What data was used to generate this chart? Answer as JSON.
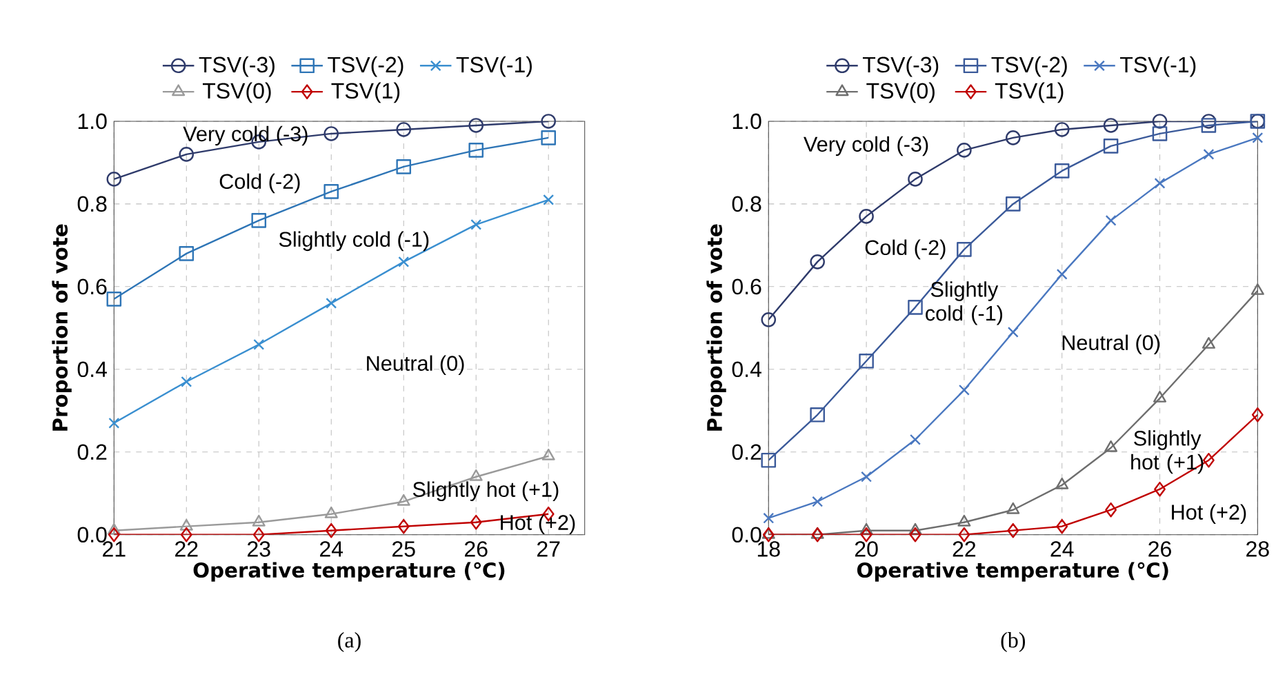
{
  "chart_data": [
    {
      "type": "line",
      "xlabel": "Operative temperature (℃)",
      "ylabel": "Proportion of vote",
      "x": [
        21,
        22,
        23,
        24,
        25,
        26,
        27
      ],
      "xlim": [
        21,
        27.5
      ],
      "xticks": [
        21,
        22,
        23,
        24,
        25,
        26,
        27
      ],
      "ylim": [
        0,
        1
      ],
      "yticks": [
        {
          "value": 0,
          "label": "0.0"
        },
        {
          "value": 0.2,
          "label": "0.2"
        },
        {
          "value": 0.4,
          "label": "0.4"
        },
        {
          "value": 0.6,
          "label": "0.6"
        },
        {
          "value": 0.8,
          "label": "0.8"
        },
        {
          "value": 1,
          "label": "1.0"
        }
      ],
      "grid": true,
      "legend": "top",
      "series": [
        {
          "name": "TSV(-3)",
          "color": "#2f3b6b",
          "marker": "circle",
          "values": [
            0.86,
            0.92,
            0.95,
            0.97,
            0.98,
            0.99,
            1.0
          ]
        },
        {
          "name": "TSV(-2)",
          "color": "#2e75b6",
          "marker": "square",
          "values": [
            0.57,
            0.68,
            0.76,
            0.83,
            0.89,
            0.93,
            0.96
          ]
        },
        {
          "name": "TSV(-1)",
          "color": "#3a8fd0",
          "marker": "cross",
          "values": [
            0.27,
            0.37,
            0.46,
            0.56,
            0.66,
            0.75,
            0.81
          ]
        },
        {
          "name": "TSV(0)",
          "color": "#9a9a9a",
          "marker": "triangle",
          "values": [
            0.01,
            0.02,
            0.03,
            0.05,
            0.08,
            0.14,
            0.19
          ]
        },
        {
          "name": "TSV(1)",
          "color": "#c00000",
          "marker": "diamond",
          "values": [
            0.0,
            0.0,
            0.0,
            0.01,
            0.02,
            0.03,
            0.05
          ]
        }
      ],
      "annotations": [
        "Very cold (-3)",
        "Cold (-2)",
        "Slightly cold (-1)",
        "Neutral (0)",
        "Slightly hot (+1)",
        "Hot (+2)",
        "(a)"
      ]
    },
    {
      "type": "line",
      "xlabel": "Operative temperature (℃)",
      "ylabel": "Proportion of vote",
      "x": [
        18,
        19,
        20,
        21,
        22,
        23,
        24,
        25,
        26,
        27,
        28
      ],
      "xlim": [
        18,
        28
      ],
      "xticks": [
        18,
        20,
        22,
        24,
        26,
        28
      ],
      "ylim": [
        0,
        1
      ],
      "yticks": [
        {
          "value": 0,
          "label": "0.0"
        },
        {
          "value": 0.2,
          "label": "0.2"
        },
        {
          "value": 0.4,
          "label": "0.4"
        },
        {
          "value": 0.6,
          "label": "0.6"
        },
        {
          "value": 0.8,
          "label": "0.8"
        },
        {
          "value": 1,
          "label": "1.0"
        }
      ],
      "grid": true,
      "legend": "top",
      "series": [
        {
          "name": "TSV(-3)",
          "color": "#2f3b6b",
          "marker": "circle",
          "values": [
            0.52,
            0.66,
            0.77,
            0.86,
            0.93,
            0.96,
            0.98,
            0.99,
            1.0,
            1.0,
            1.0
          ]
        },
        {
          "name": "TSV(-2)",
          "color": "#3b5a9a",
          "marker": "square",
          "values": [
            0.18,
            0.29,
            0.42,
            0.55,
            0.69,
            0.8,
            0.88,
            0.94,
            0.97,
            0.99,
            1.0
          ]
        },
        {
          "name": "TSV(-1)",
          "color": "#4a78c0",
          "marker": "cross",
          "values": [
            0.04,
            0.08,
            0.14,
            0.23,
            0.35,
            0.49,
            0.63,
            0.76,
            0.85,
            0.92,
            0.96
          ]
        },
        {
          "name": "TSV(0)",
          "color": "#6e6e6e",
          "marker": "triangle",
          "values": [
            0.0,
            0.0,
            0.01,
            0.01,
            0.03,
            0.06,
            0.12,
            0.21,
            0.33,
            0.46,
            0.59
          ]
        },
        {
          "name": "TSV(1)",
          "color": "#c00000",
          "marker": "diamond",
          "values": [
            0.0,
            0.0,
            0.0,
            0.0,
            0.0,
            0.01,
            0.02,
            0.06,
            0.11,
            0.18,
            0.29
          ]
        }
      ],
      "annotations": [
        "Very cold (-3)",
        "Cold (-2)",
        "Slightly cold (-1)",
        "Neutral (0)",
        "Slightly hot (+1)",
        "Hot (+2)",
        "(b)"
      ]
    }
  ]
}
